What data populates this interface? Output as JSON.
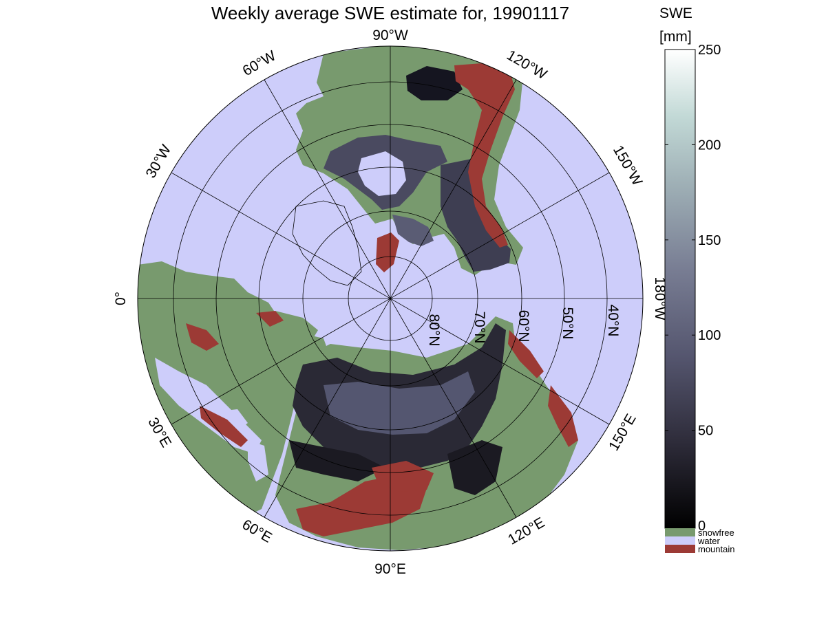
{
  "title": "Weekly average SWE estimate for, 19901117",
  "colorbar": {
    "label_line1": "SWE",
    "label_line2": "[mm]",
    "ticks": [
      "0",
      "50",
      "100",
      "150",
      "200",
      "250"
    ],
    "tick_values": [
      0,
      50,
      100,
      150,
      200,
      250
    ],
    "range": [
      0,
      250
    ],
    "gradient_colors": [
      "#000000",
      "#2e2c3a",
      "#55566f",
      "#787d93",
      "#9fb0b6",
      "#c2d9d6",
      "#ffffff"
    ],
    "categories": [
      {
        "label": "snowfree",
        "color": "#789a6e"
      },
      {
        "label": "water",
        "color": "#cdcdfa"
      },
      {
        "label": "mountain",
        "color": "#9c3a35"
      }
    ]
  },
  "map": {
    "projection": "north polar stereographic",
    "colors": {
      "water": "#cdcdfa",
      "land_snowfree": "#789a6e",
      "mountain": "#9c3a35",
      "snow_low": "#1b1a22",
      "snow_mid": "#3a3a4c",
      "snow_high": "#5a5c74",
      "gridline": "#000000"
    },
    "longitude_labels": {
      "90W": "90°W",
      "120W": "120°W",
      "150W": "150°W",
      "180W": "180°W",
      "150E": "150°E",
      "120E": "120°E",
      "90E": "90°E",
      "60E": "60°E",
      "30E": "30°E",
      "0": "0°",
      "30W": "30°W",
      "60W": "60°W"
    },
    "latitude_labels": [
      "80°N",
      "70°N",
      "60°N",
      "50°N",
      "40°N"
    ]
  }
}
